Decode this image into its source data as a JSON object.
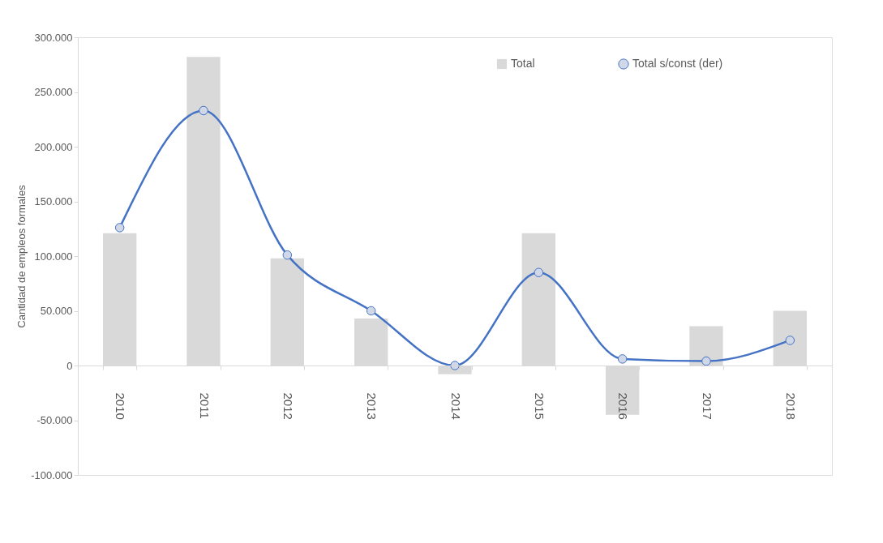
{
  "chart_data": {
    "type": "bar",
    "ylabel": "Cantidad de empleos formales",
    "categories": [
      "2010",
      "2011",
      "2012",
      "2013",
      "2014",
      "2015",
      "2016",
      "2017",
      "2018"
    ],
    "series": [
      {
        "name": "Total",
        "color": "#d9d9d9",
        "values": [
          121000,
          282000,
          98000,
          43000,
          -8000,
          121000,
          -45000,
          36000,
          50000
        ]
      },
      {
        "name": "Total s/const (der)",
        "type": "line",
        "color": "#4472c4",
        "marker": "circle",
        "line_style": "solid",
        "values": [
          126000,
          233000,
          101000,
          50000,
          0,
          85000,
          6000,
          4000,
          23000
        ]
      }
    ],
    "ylim": [
      -100000,
      300000
    ],
    "yticks": [
      {
        "value": -100000,
        "label": "-100.000"
      },
      {
        "value": -50000,
        "label": "-50.000"
      },
      {
        "value": 0,
        "label": "0"
      },
      {
        "value": 50000,
        "label": "50.000"
      },
      {
        "value": 100000,
        "label": "100.000"
      },
      {
        "value": 150000,
        "label": "150.000"
      },
      {
        "value": 200000,
        "label": "200.000"
      },
      {
        "value": 250000,
        "label": "250.000"
      },
      {
        "value": 300000,
        "label": "300.000"
      }
    ],
    "grid": false,
    "legend": "top right"
  }
}
